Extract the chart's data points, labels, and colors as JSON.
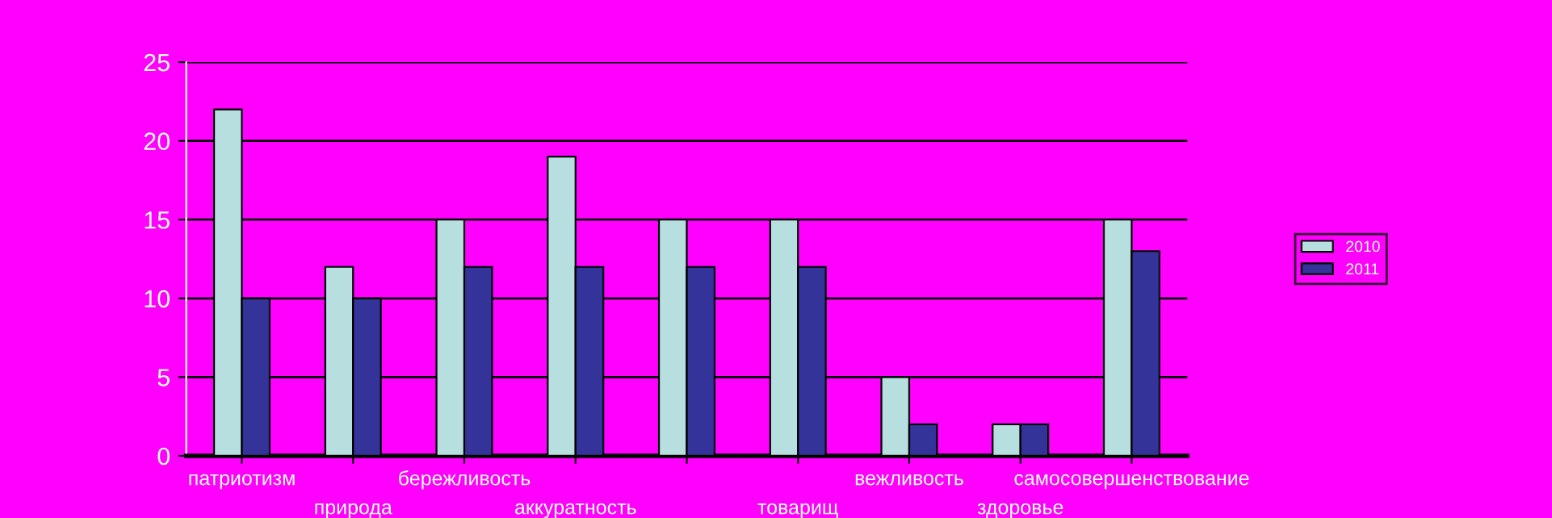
{
  "chart_data": {
    "type": "bar",
    "categories": [
      "патриотизм",
      "природа",
      "бережливость",
      "аккуратность",
      null,
      "товарищ",
      "вежливость",
      "здоровье",
      "самосовершенствование"
    ],
    "series": [
      {
        "name": "2010",
        "color": "#b8dfe0",
        "values": [
          22,
          12,
          15,
          19,
          15,
          15,
          5,
          2,
          15
        ]
      },
      {
        "name": "2011",
        "color": "#333399",
        "values": [
          10,
          10,
          12,
          12,
          12,
          12,
          2,
          2,
          13
        ]
      }
    ],
    "ylim": [
      0,
      25
    ],
    "yticks": [
      0,
      5,
      10,
      15,
      20,
      25
    ],
    "grid": "y",
    "legend": "right"
  }
}
